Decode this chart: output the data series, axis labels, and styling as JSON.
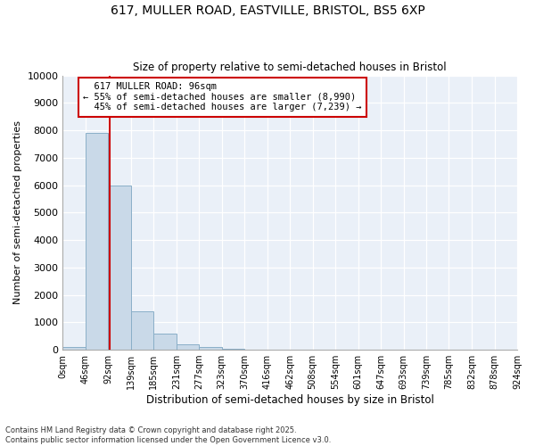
{
  "title1": "617, MULLER ROAD, EASTVILLE, BRISTOL, BS5 6XP",
  "title2": "Size of property relative to semi-detached houses in Bristol",
  "xlabel": "Distribution of semi-detached houses by size in Bristol",
  "ylabel": "Number of semi-detached properties",
  "property_size": 96,
  "property_label": "617 MULLER ROAD: 96sqm",
  "pct_smaller": 55,
  "pct_larger": 45,
  "count_smaller": 8990,
  "count_larger": 7239,
  "bin_edges": [
    0,
    46,
    92,
    139,
    185,
    231,
    277,
    323,
    370,
    416,
    462,
    508,
    554,
    601,
    647,
    693,
    739,
    785,
    832,
    878,
    924
  ],
  "bin_labels": [
    "0sqm",
    "46sqm",
    "92sqm",
    "139sqm",
    "185sqm",
    "231sqm",
    "277sqm",
    "323sqm",
    "370sqm",
    "416sqm",
    "462sqm",
    "508sqm",
    "554sqm",
    "601sqm",
    "647sqm",
    "693sqm",
    "739sqm",
    "785sqm",
    "832sqm",
    "878sqm",
    "924sqm"
  ],
  "bar_heights": [
    100,
    7900,
    6000,
    1400,
    600,
    200,
    100,
    30,
    0,
    0,
    0,
    0,
    0,
    0,
    0,
    0,
    0,
    0,
    0,
    0
  ],
  "bar_color": "#c9d9e8",
  "bar_edge_color": "#8aafc8",
  "grid_color": "#c8d8e8",
  "plot_bg_color": "#eaf0f8",
  "vline_color": "#cc0000",
  "vline_x": 96,
  "annotation_box_color": "#cc0000",
  "ylim": [
    0,
    10000
  ],
  "yticks": [
    0,
    1000,
    2000,
    3000,
    4000,
    5000,
    6000,
    7000,
    8000,
    9000,
    10000
  ],
  "footnote1": "Contains HM Land Registry data © Crown copyright and database right 2025.",
  "footnote2": "Contains public sector information licensed under the Open Government Licence v3.0."
}
